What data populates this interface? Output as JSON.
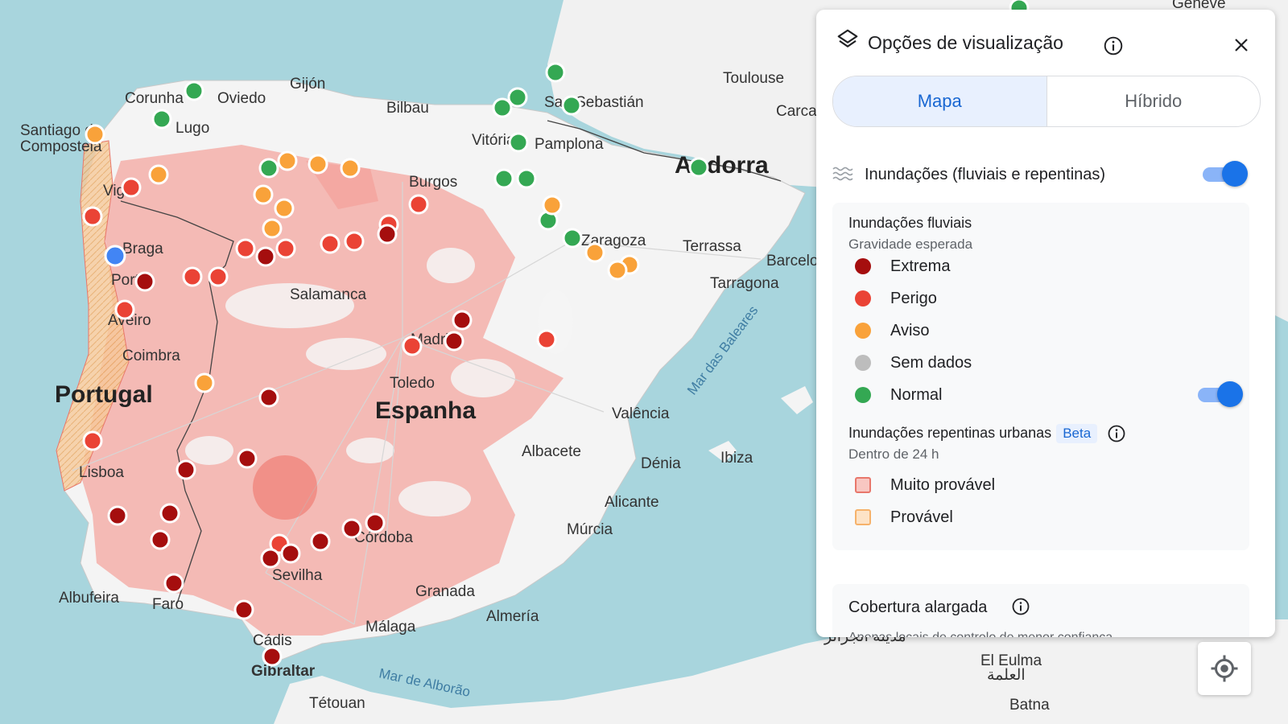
{
  "map": {
    "countries": [
      "Portugal",
      "Espanha"
    ],
    "places": [
      "Gijón",
      "Corunha",
      "Oviedo",
      "Santiago de Compostela",
      "Lugo",
      "Bilbau",
      "Vitória",
      "Pamplona",
      "Burgos",
      "Vigo",
      "Braga",
      "Porto",
      "Aveiro",
      "Salamanca",
      "Madrid",
      "Coimbra",
      "Toledo",
      "Lisboa",
      "Zaragoza",
      "Terrassa",
      "Barcelona",
      "Tarragona",
      "Toulouse",
      "Carcassonne",
      "San Sebastián",
      "Valência",
      "Albacete",
      "Dénia",
      "Ibiza",
      "Alicante",
      "Múrcia",
      "Córdoba",
      "Sevilha",
      "Granada",
      "Almería",
      "Málaga",
      "Albufeira",
      "Faro",
      "Cádis",
      "Gibraltar",
      "Tétouan",
      "El Eulma",
      "Batna",
      "Andorra",
      "Genève",
      "مدينة الجزائر",
      "العلمة"
    ],
    "seas": [
      "Mar das Baleares",
      "Mar de Alborão"
    ],
    "marker_colors": {
      "extrema": "#a50e0e",
      "perigo": "#ea4335",
      "aviso": "#f9a23a",
      "normal": "#34a853",
      "user": "#4285f4"
    }
  },
  "panel": {
    "title": "Opções de visualização",
    "tabs": [
      {
        "label": "Mapa",
        "active": true
      },
      {
        "label": "Híbrido",
        "active": false
      }
    ],
    "flood_layer": {
      "label": "Inundações (fluviais e repentinas)",
      "enabled": true
    },
    "riverine": {
      "title": "Inundações fluviais",
      "subtitle": "Gravidade esperada",
      "levels": [
        {
          "label": "Extrema",
          "color": "#a50e0e"
        },
        {
          "label": "Perigo",
          "color": "#ea4335"
        },
        {
          "label": "Aviso",
          "color": "#f9a23a"
        },
        {
          "label": "Sem dados",
          "color": "#bdbdbd"
        },
        {
          "label": "Normal",
          "color": "#34a853"
        }
      ],
      "normal_enabled": true
    },
    "urban": {
      "title": "Inundações repentinas urbanas",
      "badge": "Beta",
      "subtitle": "Dentro de 24 h",
      "levels": [
        {
          "label": "Muito provável",
          "fill": "#f8c7c2",
          "border": "#e8776b"
        },
        {
          "label": "Provável",
          "fill": "#fde3c6",
          "border": "#f6b26b"
        }
      ]
    },
    "coverage": {
      "title": "Cobertura alargada",
      "desc": "Apenas locais de controlo de menor confiança"
    }
  }
}
